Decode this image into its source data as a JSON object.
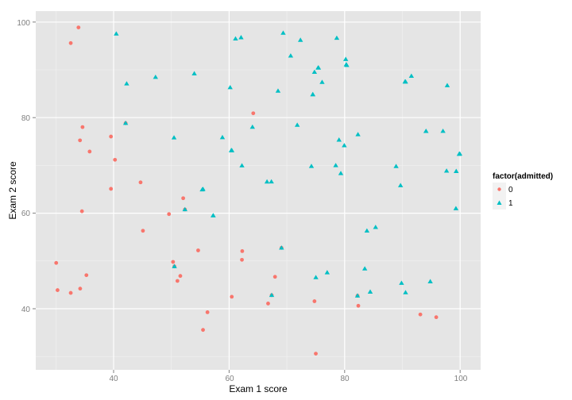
{
  "chart_data": {
    "type": "scatter",
    "title": "",
    "xlabel": "Exam 1 score",
    "ylabel": "Exam 2 score",
    "xlim": [
      27.5,
      104.5
    ],
    "ylim": [
      27.5,
      102.5
    ],
    "x_ticks": [
      40,
      60,
      80,
      100
    ],
    "y_ticks": [
      40,
      60,
      80,
      100
    ],
    "grid": true,
    "legend": {
      "title": "factor(admitted)",
      "position": "right",
      "entries": [
        {
          "label": "0",
          "color": "#F8766D",
          "shape": "circle"
        },
        {
          "label": "1",
          "color": "#00BFC4",
          "shape": "triangle"
        }
      ]
    },
    "series": [
      {
        "name": "0",
        "color": "#F8766D",
        "shape": "circle",
        "points": [
          [
            34.62,
            78.02
          ],
          [
            30.29,
            43.89
          ],
          [
            35.85,
            72.9
          ],
          [
            45.08,
            56.32
          ],
          [
            95.86,
            38.23
          ],
          [
            75.01,
            30.6
          ],
          [
            39.54,
            76.04
          ],
          [
            67.95,
            46.68
          ],
          [
            69.07,
            52.74
          ],
          [
            67.37,
            42.84
          ],
          [
            50.53,
            48.86
          ],
          [
            34.21,
            44.21
          ],
          [
            93.11,
            38.8
          ],
          [
            35.29,
            47.02
          ],
          [
            30.06,
            49.59
          ],
          [
            49.59,
            59.81
          ],
          [
            32.58,
            95.6
          ],
          [
            34.18,
            75.24
          ],
          [
            39.54,
            65.09
          ],
          [
            82.23,
            42.72
          ],
          [
            42.08,
            78.84
          ],
          [
            52.35,
            60.77
          ],
          [
            55.48,
            35.57
          ],
          [
            74.78,
            41.57
          ],
          [
            44.67,
            66.45
          ],
          [
            62.27,
            52.06
          ],
          [
            60.46,
            42.51
          ],
          [
            50.29,
            49.8
          ],
          [
            52.05,
            63.13
          ],
          [
            40.24,
            71.17
          ],
          [
            54.64,
            52.21
          ],
          [
            33.92,
            98.87
          ],
          [
            64.18,
            80.91
          ],
          [
            51.55,
            46.86
          ],
          [
            34.52,
            60.4
          ],
          [
            56.25,
            39.26
          ],
          [
            32.58,
            43.31
          ],
          [
            51.05,
            45.82
          ],
          [
            62.22,
            50.24
          ],
          [
            82.37,
            40.62
          ],
          [
            66.75,
            41.09
          ]
        ]
      },
      {
        "name": "1",
        "color": "#00BFC4",
        "shape": "triangle",
        "points": [
          [
            60.18,
            86.31
          ],
          [
            79.03,
            75.34
          ],
          [
            61.11,
            96.51
          ],
          [
            75.02,
            46.55
          ],
          [
            76.1,
            87.42
          ],
          [
            84.43,
            43.53
          ],
          [
            82.31,
            76.48
          ],
          [
            69.36,
            97.72
          ],
          [
            53.97,
            89.21
          ],
          [
            69.07,
            52.74
          ],
          [
            70.66,
            92.93
          ],
          [
            76.98,
            47.58
          ],
          [
            67.37,
            42.84
          ],
          [
            89.68,
            65.8
          ],
          [
            50.53,
            48.86
          ],
          [
            74.49,
            84.85
          ],
          [
            78.46,
            69.99
          ],
          [
            80.19,
            92.22
          ],
          [
            83.86,
            56.31
          ],
          [
            57.24,
            59.51
          ],
          [
            97.65,
            68.86
          ],
          [
            79.34,
            68.34
          ],
          [
            99.94,
            72.43
          ],
          [
            90.55,
            87.51
          ],
          [
            60.37,
            73.13
          ],
          [
            97.77,
            86.73
          ],
          [
            62.07,
            96.77
          ],
          [
            91.56,
            88.7
          ],
          [
            79.94,
            74.16
          ],
          [
            99.27,
            60.99
          ],
          [
            90.55,
            43.39
          ],
          [
            94.83,
            45.69
          ],
          [
            85.36,
            57.05
          ],
          [
            97.03,
            77.17
          ],
          [
            74.25,
            69.82
          ],
          [
            71.8,
            78.45
          ],
          [
            75.4,
            90.42
          ],
          [
            40.46,
            97.54
          ],
          [
            80.28,
            91.11
          ],
          [
            66.56,
            66.58
          ],
          [
            64.04,
            78.03
          ],
          [
            72.35,
            96.23
          ],
          [
            60.46,
            73.13
          ],
          [
            58.84,
            75.86
          ],
          [
            99.83,
            72.37
          ],
          [
            47.26,
            88.48
          ],
          [
            50.46,
            75.81
          ],
          [
            60.46,
            73.13
          ],
          [
            82.23,
            42.72
          ],
          [
            88.91,
            69.8
          ],
          [
            94.09,
            77.16
          ],
          [
            67.32,
            66.59
          ],
          [
            57.24,
            59.51
          ],
          [
            80.37,
            90.96
          ],
          [
            68.47,
            85.59
          ],
          [
            42.08,
            78.84
          ],
          [
            75.48,
            90.42
          ],
          [
            78.64,
            96.65
          ],
          [
            52.35,
            60.77
          ],
          [
            94.09,
            77.16
          ],
          [
            90.45,
            87.51
          ],
          [
            55.48,
            65.03
          ],
          [
            74.49,
            84.85
          ],
          [
            89.85,
            45.36
          ],
          [
            83.49,
            48.38
          ],
          [
            42.26,
            87.1
          ],
          [
            99.32,
            68.78
          ],
          [
            55.34,
            64.93
          ],
          [
            74.78,
            89.53
          ],
          [
            62.22,
            69.95
          ]
        ]
      }
    ]
  },
  "axes": {
    "x_tick_labels": [
      "40",
      "60",
      "80",
      "100"
    ],
    "y_tick_labels": [
      "40",
      "60",
      "80",
      "100"
    ],
    "xlabel": "Exam 1 score",
    "ylabel": "Exam 2 score"
  },
  "legend": {
    "title": "factor(admitted)",
    "items": [
      {
        "label": "0"
      },
      {
        "label": "1"
      }
    ]
  },
  "colors": {
    "panel_bg": "#E5E5E5",
    "grid_major": "#FFFFFF",
    "grid_minor": "#F2F2F2",
    "class0": "#F8766D",
    "class1": "#00BFC4"
  }
}
